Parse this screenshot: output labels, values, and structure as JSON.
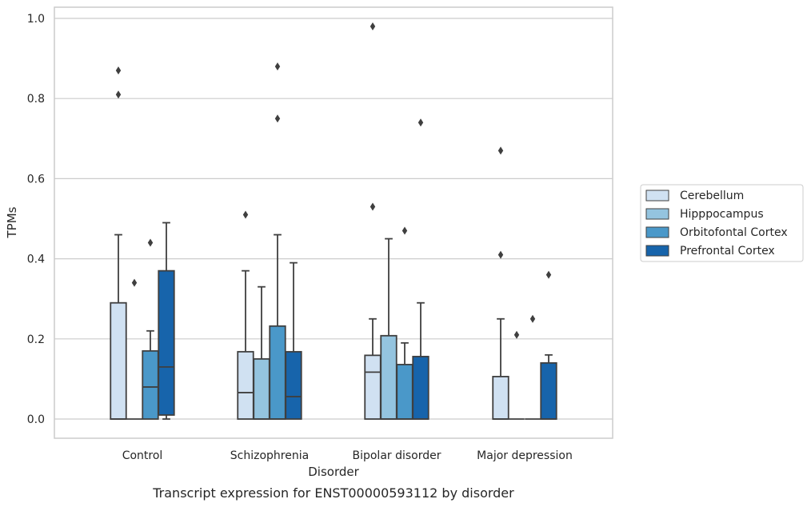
{
  "chart_data": {
    "type": "box",
    "title": "",
    "caption": "Transcript expression for ENST00000593112 by disorder",
    "xlabel": "Disorder",
    "ylabel": "TPMs",
    "ylim": [
      -0.045,
      1.03
    ],
    "yticks": [
      "0.0",
      "0.2",
      "0.4",
      "0.6",
      "0.8",
      "1.0"
    ],
    "grid": true,
    "legend_position": "right",
    "categories": [
      "Control",
      "Schizophrenia",
      "Bipolar disorder",
      "Major depression"
    ],
    "series": [
      {
        "name": "Cerebellum",
        "color": "#d0e1f2",
        "boxes": [
          {
            "whislo": 0.0,
            "q1": 0.0,
            "med": 0.0,
            "q3": 0.29,
            "whishi": 0.46,
            "fliers": [
              0.81,
              0.87
            ]
          },
          {
            "whislo": 0.0,
            "q1": 0.0,
            "med": 0.066,
            "q3": 0.168,
            "whishi": 0.37,
            "fliers": [
              0.51
            ]
          },
          {
            "whislo": 0.0,
            "q1": 0.0,
            "med": 0.117,
            "q3": 0.159,
            "whishi": 0.25,
            "fliers": [
              0.53,
              0.98
            ]
          },
          {
            "whislo": 0.0,
            "q1": 0.0,
            "med": 0.0,
            "q3": 0.106,
            "whishi": 0.25,
            "fliers": [
              0.41,
              0.67
            ]
          }
        ]
      },
      {
        "name": "Hipppocampus",
        "color": "#94c4df",
        "boxes": [
          {
            "whislo": 0.0,
            "q1": 0.0,
            "med": 0.0,
            "q3": 0.0,
            "whishi": 0.0,
            "fliers": [
              0.34
            ]
          },
          {
            "whislo": 0.0,
            "q1": 0.0,
            "med": 0.0,
            "q3": 0.15,
            "whishi": 0.33,
            "fliers": []
          },
          {
            "whislo": 0.0,
            "q1": 0.0,
            "med": 0.0,
            "q3": 0.208,
            "whishi": 0.45,
            "fliers": []
          },
          {
            "whislo": 0.0,
            "q1": 0.0,
            "med": 0.0,
            "q3": 0.0,
            "whishi": 0.0,
            "fliers": [
              0.21
            ]
          }
        ]
      },
      {
        "name": "Orbitofontal Cortex",
        "color": "#4a98c9",
        "boxes": [
          {
            "whislo": 0.0,
            "q1": 0.0,
            "med": 0.08,
            "q3": 0.17,
            "whishi": 0.22,
            "fliers": [
              0.44
            ]
          },
          {
            "whislo": 0.0,
            "q1": 0.0,
            "med": 0.0,
            "q3": 0.232,
            "whishi": 0.46,
            "fliers": [
              0.75,
              0.88
            ]
          },
          {
            "whislo": 0.0,
            "q1": 0.0,
            "med": 0.0,
            "q3": 0.136,
            "whishi": 0.19,
            "fliers": [
              0.47
            ]
          },
          {
            "whislo": 0.0,
            "q1": 0.0,
            "med": 0.0,
            "q3": 0.0,
            "whishi": 0.0,
            "fliers": [
              0.25
            ]
          }
        ]
      },
      {
        "name": "Prefrontal Cortex",
        "color": "#1764ab",
        "boxes": [
          {
            "whislo": 0.0,
            "q1": 0.01,
            "med": 0.13,
            "q3": 0.37,
            "whishi": 0.49,
            "fliers": []
          },
          {
            "whislo": 0.0,
            "q1": 0.0,
            "med": 0.056,
            "q3": 0.168,
            "whishi": 0.39,
            "fliers": []
          },
          {
            "whislo": 0.0,
            "q1": 0.0,
            "med": 0.0,
            "q3": 0.156,
            "whishi": 0.29,
            "fliers": [
              0.74
            ]
          },
          {
            "whislo": 0.0,
            "q1": 0.0,
            "med": 0.0,
            "q3": 0.14,
            "whishi": 0.16,
            "fliers": [
              0.36
            ]
          }
        ]
      }
    ]
  }
}
